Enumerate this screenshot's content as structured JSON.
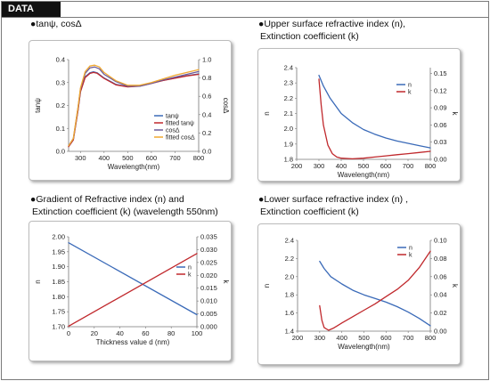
{
  "header": {
    "label": "DATA"
  },
  "panels": [
    {
      "title_lines": [
        "●tanψ, cosΔ"
      ]
    },
    {
      "title_lines": [
        "●Upper surface refractive index (n),",
        "Extinction coefficient (k)"
      ]
    },
    {
      "title_lines": [
        "●Gradient of Refractive index (n) and",
        "Extinction coefficient (k) (wavelength 550nm)"
      ]
    },
    {
      "title_lines": [
        "●Lower surface refractive index (n) ,",
        "Extinction coefficient (k)"
      ]
    }
  ],
  "chart_data": [
    {
      "type": "line",
      "xlabel": "Wavelength(nm)",
      "ylabel": "tanψ",
      "y2label": "cosΔ",
      "xlim": [
        250,
        800
      ],
      "xticks": [
        300,
        400,
        500,
        600,
        700,
        800
      ],
      "ylim": [
        0,
        0.4
      ],
      "yticks": [
        "0.0",
        "0.1",
        "0.2",
        "0.3",
        "0.4"
      ],
      "y2lim": [
        0,
        1.0
      ],
      "y2ticks": [
        "0.0",
        "0.2",
        "0.4",
        "0.6",
        "0.8",
        "1.0"
      ],
      "grid": false,
      "legend_position": "bottom-right",
      "colors": [
        "#3a6ab8",
        "#c0282c",
        "#6a5a9a",
        "#f0a830"
      ],
      "series": [
        {
          "name": "tanψ",
          "axis": "left",
          "color": "#3a6ab8",
          "x": [
            250,
            270,
            290,
            300,
            320,
            340,
            355,
            370,
            400,
            450,
            500,
            550,
            600,
            650,
            700,
            750,
            800
          ],
          "y": [
            0.02,
            0.05,
            0.18,
            0.26,
            0.325,
            0.343,
            0.347,
            0.343,
            0.32,
            0.292,
            0.282,
            0.285,
            0.297,
            0.31,
            0.32,
            0.33,
            0.338
          ]
        },
        {
          "name": "fitted tanψ",
          "axis": "left",
          "color": "#c0282c",
          "x": [
            250,
            270,
            290,
            300,
            320,
            340,
            355,
            370,
            400,
            450,
            500,
            550,
            600,
            650,
            700,
            750,
            800
          ],
          "y": [
            0.02,
            0.05,
            0.18,
            0.26,
            0.322,
            0.34,
            0.344,
            0.341,
            0.318,
            0.29,
            0.281,
            0.284,
            0.296,
            0.309,
            0.319,
            0.329,
            0.336
          ]
        },
        {
          "name": "cosΔ",
          "axis": "right",
          "color": "#6a5a9a",
          "x": [
            250,
            270,
            290,
            300,
            320,
            340,
            360,
            380,
            400,
            450,
            500,
            550,
            600,
            650,
            700,
            750,
            800
          ],
          "y": [
            0.06,
            0.14,
            0.48,
            0.68,
            0.85,
            0.91,
            0.92,
            0.9,
            0.84,
            0.76,
            0.71,
            0.71,
            0.74,
            0.78,
            0.81,
            0.84,
            0.87
          ]
        },
        {
          "name": "fitted cosΔ",
          "axis": "right",
          "color": "#f0a830",
          "x": [
            250,
            270,
            290,
            300,
            320,
            340,
            360,
            380,
            400,
            450,
            500,
            550,
            600,
            650,
            700,
            750,
            800
          ],
          "y": [
            0.06,
            0.14,
            0.48,
            0.69,
            0.87,
            0.93,
            0.94,
            0.92,
            0.86,
            0.77,
            0.72,
            0.72,
            0.75,
            0.79,
            0.83,
            0.86,
            0.89
          ]
        }
      ]
    },
    {
      "type": "line",
      "xlabel": "Wavelength(nm)",
      "ylabel": "n",
      "y2label": "k",
      "xlim": [
        200,
        800
      ],
      "xticks": [
        200,
        300,
        400,
        500,
        600,
        700,
        800
      ],
      "ylim": [
        1.8,
        2.4
      ],
      "yticks": [
        "1.8",
        "1.9",
        "2.0",
        "2.1",
        "2.2",
        "2.3",
        "2.4"
      ],
      "y2lim": [
        0,
        0.16
      ],
      "y2ticks": [
        "0.00",
        "0.03",
        "0.06",
        "0.09",
        "0.12",
        "0.15"
      ],
      "grid": false,
      "legend_position": "top-right",
      "colors": [
        "#3a6ab8",
        "#c0282c"
      ],
      "series": [
        {
          "name": "n",
          "axis": "left",
          "color": "#3a6ab8",
          "x": [
            300,
            320,
            350,
            400,
            450,
            500,
            550,
            600,
            650,
            700,
            750,
            800
          ],
          "y": [
            2.35,
            2.28,
            2.2,
            2.1,
            2.04,
            1.995,
            1.965,
            1.94,
            1.92,
            1.905,
            1.89,
            1.875
          ]
        },
        {
          "name": "k",
          "axis": "right",
          "color": "#c0282c",
          "x": [
            300,
            310,
            320,
            340,
            360,
            380,
            400,
            450,
            500,
            550,
            600,
            650,
            700,
            750,
            800
          ],
          "y": [
            0.14,
            0.095,
            0.06,
            0.025,
            0.01,
            0.004,
            0.002,
            0.001,
            0.002,
            0.004,
            0.006,
            0.008,
            0.01,
            0.012,
            0.014
          ]
        }
      ]
    },
    {
      "type": "line",
      "xlabel": "Thickness value d (nm)",
      "ylabel": "n",
      "y2label": "k",
      "xlim": [
        0,
        100
      ],
      "xticks": [
        0,
        20,
        40,
        60,
        80,
        100
      ],
      "ylim": [
        1.7,
        2.0
      ],
      "yticks": [
        "1.70",
        "1.75",
        "1.80",
        "1.85",
        "1.90",
        "1.95",
        "2.00"
      ],
      "y2lim": [
        0,
        0.035
      ],
      "y2ticks": [
        "0.000",
        "0.005",
        "0.010",
        "0.015",
        "0.020",
        "0.025",
        "0.030",
        "0.035"
      ],
      "grid": false,
      "legend_position": "right",
      "colors": [
        "#3a6ab8",
        "#c0282c"
      ],
      "series": [
        {
          "name": "n",
          "axis": "left",
          "color": "#3a6ab8",
          "x": [
            0,
            100
          ],
          "y": [
            1.98,
            1.74
          ]
        },
        {
          "name": "k",
          "axis": "right",
          "color": "#c0282c",
          "x": [
            0,
            100
          ],
          "y": [
            0.0002,
            0.0285
          ]
        }
      ]
    },
    {
      "type": "line",
      "xlabel": "Wavelength(nm)",
      "ylabel": "n",
      "y2label": "k",
      "xlim": [
        200,
        800
      ],
      "xticks": [
        200,
        300,
        400,
        500,
        600,
        700,
        800
      ],
      "ylim": [
        1.4,
        2.4
      ],
      "yticks": [
        "1.4",
        "1.6",
        "1.8",
        "2.0",
        "2.2",
        "2.4"
      ],
      "y2lim": [
        0,
        0.1
      ],
      "y2ticks": [
        "0.00",
        "0.02",
        "0.04",
        "0.06",
        "0.08",
        "0.10"
      ],
      "grid": false,
      "legend_position": "top-right",
      "colors": [
        "#3a6ab8",
        "#c0282c"
      ],
      "series": [
        {
          "name": "n",
          "axis": "left",
          "color": "#3a6ab8",
          "x": [
            300,
            320,
            350,
            400,
            450,
            500,
            550,
            600,
            650,
            700,
            750,
            800
          ],
          "y": [
            2.17,
            2.09,
            2.0,
            1.92,
            1.85,
            1.8,
            1.76,
            1.72,
            1.67,
            1.61,
            1.54,
            1.46
          ]
        },
        {
          "name": "k",
          "axis": "right",
          "color": "#c0282c",
          "x": [
            300,
            310,
            320,
            340,
            360,
            380,
            400,
            450,
            500,
            550,
            600,
            650,
            700,
            750,
            800
          ],
          "y": [
            0.028,
            0.012,
            0.004,
            0.001,
            0.003,
            0.006,
            0.009,
            0.016,
            0.023,
            0.03,
            0.038,
            0.046,
            0.056,
            0.07,
            0.088
          ]
        }
      ]
    }
  ]
}
